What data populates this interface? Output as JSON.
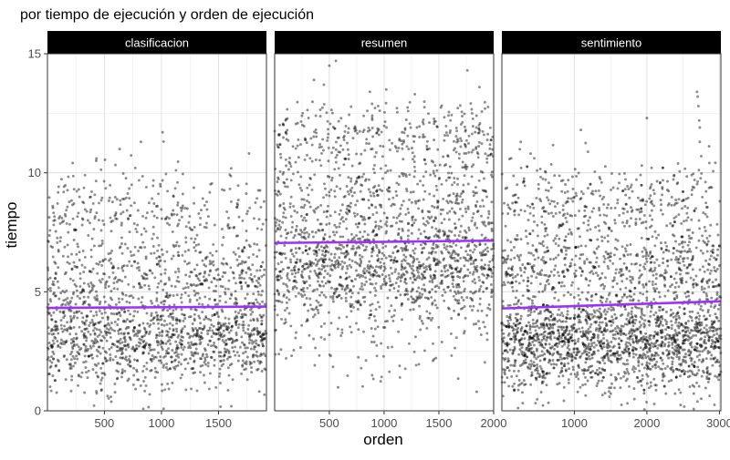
{
  "title": "por tiempo de ejecución y orden de ejecución",
  "xlabel": "orden",
  "ylabel": "tiempo",
  "colors": {
    "point": "#000000",
    "trend": "#9b30ff",
    "strip_bg": "#000000",
    "strip_text": "#ffffff",
    "grid_major": "#d9d9d9",
    "grid_minor": "#ececec",
    "panel_border": "#333333"
  },
  "chart_data": {
    "type": "scatter",
    "title": "por tiempo de ejecución y orden de ejecución",
    "xlabel": "orden",
    "ylabel": "tiempo",
    "ylim": [
      0,
      15
    ],
    "y_ticks": [
      0,
      5,
      10,
      15
    ],
    "grid": true,
    "legend": "none",
    "point_opacity": 0.45,
    "panels": [
      {
        "name": "clasificacion",
        "xlim": [
          1,
          1920
        ],
        "x_ticks": [
          500,
          1000,
          1500
        ],
        "n_points": 1900,
        "trend": {
          "x": [
            1,
            1920
          ],
          "y": [
            4.32,
            4.38
          ]
        },
        "bands": [
          {
            "weight": 0.6,
            "mean": 3.0,
            "sd": 1.0
          },
          {
            "weight": 0.26,
            "mean": 5.7,
            "sd": 0.9
          },
          {
            "weight": 0.14,
            "mean": 8.4,
            "sd": 1.0
          }
        ],
        "outliers": [
          [
            820,
            11.3
          ],
          [
            1010,
            11.7
          ],
          [
            770,
            10.2
          ],
          [
            430,
            10.6
          ]
        ]
      },
      {
        "name": "resumen",
        "xlim": [
          1,
          2000
        ],
        "x_ticks": [
          500,
          1000,
          1500,
          2000
        ],
        "n_points": 2000,
        "trend": {
          "x": [
            1,
            2000
          ],
          "y": [
            7.05,
            7.15
          ]
        },
        "bands": [
          {
            "weight": 0.5,
            "mean": 5.9,
            "sd": 1.1
          },
          {
            "weight": 0.28,
            "mean": 8.7,
            "sd": 1.2
          },
          {
            "weight": 0.16,
            "mean": 11.5,
            "sd": 0.8
          },
          {
            "weight": 0.06,
            "mean": 3.0,
            "sd": 1.1
          }
        ],
        "outliers": [
          [
            560,
            14.7
          ],
          [
            500,
            14.5
          ],
          [
            1760,
            14.3
          ],
          [
            1280,
            13.3
          ],
          [
            1020,
            13.5
          ],
          [
            450,
            13.7
          ],
          [
            1870,
            13.6
          ],
          [
            870,
            13.4
          ],
          [
            360,
            13.9
          ]
        ]
      },
      {
        "name": "sentimiento",
        "xlim": [
          1,
          3020
        ],
        "x_ticks": [
          1000,
          2000,
          3000
        ],
        "n_points": 2700,
        "trend": {
          "x": [
            1,
            3020
          ],
          "y": [
            4.3,
            4.6
          ]
        },
        "bands": [
          {
            "weight": 0.62,
            "mean": 2.9,
            "sd": 1.0
          },
          {
            "weight": 0.24,
            "mean": 6.1,
            "sd": 0.9
          },
          {
            "weight": 0.14,
            "mean": 8.8,
            "sd": 0.9
          }
        ],
        "outliers": [
          [
            2690,
            13.4
          ],
          [
            2700,
            13.2
          ],
          [
            2710,
            12.8
          ],
          [
            2720,
            12.2
          ],
          [
            2730,
            11.9
          ],
          [
            2730,
            11.3
          ],
          [
            2750,
            10.7
          ],
          [
            2000,
            12.3
          ],
          [
            1090,
            11.8
          ],
          [
            260,
            11.3
          ]
        ]
      }
    ]
  }
}
